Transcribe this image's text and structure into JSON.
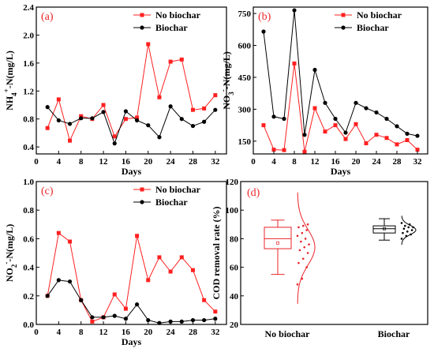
{
  "chart_data": [
    {
      "panel": "(a)",
      "type": "line",
      "xlabel": "Days",
      "ylabel_main": "NH",
      "ylabel_sub": "4",
      "ylabel_sup": "+",
      "ylabel_tail": "-N(mg/L)",
      "xlim": [
        0,
        34
      ],
      "ylim": [
        0.3,
        2.4
      ],
      "xticks": [
        0,
        4,
        8,
        12,
        16,
        20,
        24,
        28,
        32
      ],
      "yticks": [
        0.4,
        0.8,
        1.2,
        1.6,
        2.0,
        2.4
      ],
      "ytick_labels": [
        "0.4",
        "0.8",
        "1.2",
        "1.6",
        "2.0",
        "2.4"
      ],
      "legend_position": "top-right",
      "series": [
        {
          "name": "No biochar",
          "color": "#ff2020",
          "marker": "square",
          "x": [
            2,
            4,
            6,
            8,
            10,
            12,
            14,
            16,
            18,
            20,
            22,
            24,
            26,
            28,
            30,
            32
          ],
          "y": [
            0.67,
            1.08,
            0.49,
            0.84,
            0.8,
            1.0,
            0.55,
            0.8,
            0.82,
            1.87,
            1.11,
            1.62,
            1.65,
            0.93,
            0.95,
            1.14
          ]
        },
        {
          "name": "Biochar",
          "color": "#000000",
          "marker": "circle",
          "x": [
            2,
            4,
            6,
            8,
            10,
            12,
            14,
            16,
            18,
            20,
            22,
            24,
            26,
            28,
            30,
            32
          ],
          "y": [
            0.97,
            0.78,
            0.73,
            0.81,
            0.81,
            0.9,
            0.45,
            0.91,
            0.78,
            0.71,
            0.54,
            0.98,
            0.8,
            0.7,
            0.76,
            0.93
          ]
        }
      ]
    },
    {
      "panel": "(b)",
      "type": "line",
      "xlabel": "Days",
      "ylabel_main": "NO",
      "ylabel_sub": "3",
      "ylabel_sup": "-",
      "ylabel_tail": "-N(mg/L)",
      "xlim": [
        0,
        34
      ],
      "ylim": [
        90,
        780
      ],
      "xticks": [
        0,
        4,
        8,
        12,
        16,
        20,
        24,
        28,
        32
      ],
      "yticks": [
        150,
        300,
        450,
        600,
        750
      ],
      "ytick_labels": [
        "150",
        "300",
        "450",
        "600",
        "750"
      ],
      "legend_position": "top-right",
      "series": [
        {
          "name": "No biochar",
          "color": "#ff2020",
          "marker": "square",
          "x": [
            2,
            4,
            6,
            8,
            10,
            12,
            14,
            16,
            18,
            20,
            22,
            24,
            26,
            28,
            30,
            32
          ],
          "y": [
            225,
            110,
            108,
            515,
            100,
            305,
            195,
            225,
            160,
            230,
            140,
            180,
            165,
            135,
            155,
            110
          ]
        },
        {
          "name": "Biochar",
          "color": "#000000",
          "marker": "circle",
          "x": [
            2,
            4,
            6,
            8,
            10,
            12,
            14,
            16,
            18,
            20,
            22,
            24,
            26,
            28,
            30,
            32
          ],
          "y": [
            665,
            265,
            255,
            765,
            180,
            485,
            330,
            255,
            190,
            330,
            305,
            285,
            255,
            220,
            185,
            175
          ]
        }
      ]
    },
    {
      "panel": "(c)",
      "type": "line",
      "xlabel": "Days",
      "ylabel_main": "NO",
      "ylabel_sub": "2",
      "ylabel_sup": "-",
      "ylabel_tail": "-N(mg/L)",
      "xlim": [
        0,
        34
      ],
      "ylim": [
        0,
        1.0
      ],
      "xticks": [
        0,
        4,
        8,
        12,
        16,
        20,
        24,
        28,
        32
      ],
      "yticks": [
        0.0,
        0.2,
        0.4,
        0.6,
        0.8,
        1.0
      ],
      "ytick_labels": [
        "0.0",
        "0.2",
        "0.4",
        "0.6",
        "0.8",
        "1.0"
      ],
      "legend_position": "top-right",
      "series": [
        {
          "name": "No biochar",
          "color": "#ff2020",
          "marker": "square",
          "x": [
            2,
            4,
            6,
            8,
            10,
            12,
            14,
            16,
            18,
            20,
            22,
            24,
            26,
            28,
            30,
            32
          ],
          "y": [
            0.2,
            0.64,
            0.58,
            0.17,
            0.02,
            0.05,
            0.21,
            0.11,
            0.62,
            0.31,
            0.47,
            0.37,
            0.47,
            0.38,
            0.17,
            0.09
          ]
        },
        {
          "name": "Biochar",
          "color": "#000000",
          "marker": "circle",
          "x": [
            2,
            4,
            6,
            8,
            10,
            12,
            14,
            16,
            18,
            20,
            22,
            24,
            26,
            28,
            30,
            32
          ],
          "y": [
            0.2,
            0.31,
            0.3,
            0.17,
            0.05,
            0.05,
            0.06,
            0.04,
            0.14,
            0.03,
            0.01,
            0.02,
            0.02,
            0.03,
            0.03,
            0.04
          ]
        }
      ]
    },
    {
      "panel": "(d)",
      "type": "box",
      "ylabel": "COD removal rate (%)",
      "ylim": [
        20,
        120
      ],
      "yticks": [
        20,
        40,
        60,
        80,
        100,
        120
      ],
      "ytick_labels": [
        "20",
        "40",
        "60",
        "80",
        "100",
        "120"
      ],
      "categories": [
        "No biochar",
        "Biochar"
      ],
      "groups": [
        {
          "name": "No biochar",
          "color": "#e8242a",
          "whisker_low": 55,
          "q1": 73,
          "median": 80,
          "q3": 88,
          "whisker_high": 93,
          "mean": 77,
          "points": [
            48,
            52,
            60,
            63,
            66,
            70,
            72,
            74,
            76,
            78,
            80,
            82,
            84,
            86,
            88,
            89,
            90
          ]
        },
        {
          "name": "Biochar",
          "color": "#000000",
          "whisker_low": 79,
          "q1": 84,
          "median": 87,
          "q3": 89,
          "whisker_high": 94,
          "mean": 87,
          "points": [
            80,
            82,
            83,
            84,
            85,
            86,
            87,
            88,
            88,
            89,
            90,
            91
          ]
        }
      ]
    }
  ]
}
